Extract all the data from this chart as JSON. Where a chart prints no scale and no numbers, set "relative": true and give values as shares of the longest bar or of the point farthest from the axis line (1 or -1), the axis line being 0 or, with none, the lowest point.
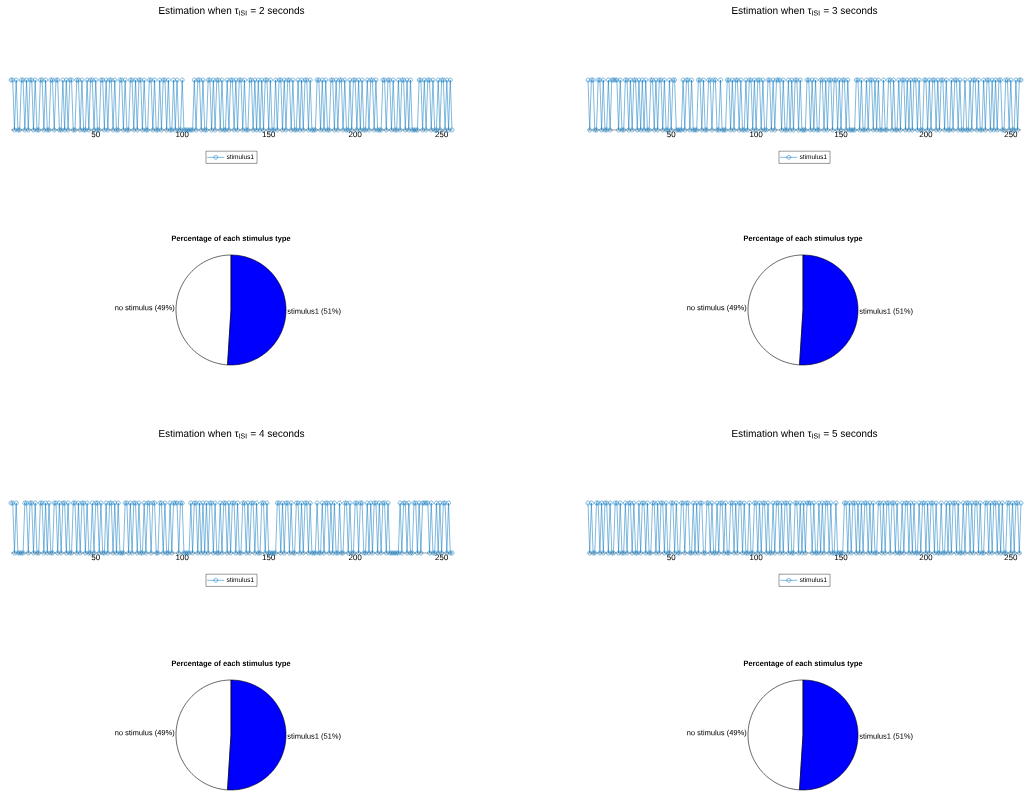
{
  "chart_data": [
    {
      "type": "line",
      "title": "Estimation when τ$_{ISI}$ = 2 seconds",
      "relative": true,
      "marker": "circle",
      "legend": "bottom",
      "xlim": [
        1,
        256
      ],
      "xticks": [
        50,
        100,
        150,
        200,
        250
      ],
      "x": [
        1,
        2,
        3,
        4,
        5,
        6,
        7,
        8,
        9,
        10,
        11,
        12,
        13,
        14,
        15,
        16,
        17,
        18,
        19,
        20,
        21,
        22,
        23,
        24,
        25,
        26,
        27,
        28,
        29,
        30,
        31,
        32,
        33,
        34,
        35,
        36,
        37,
        38,
        39,
        40,
        41,
        42,
        43,
        44,
        45,
        46,
        47,
        48,
        49,
        50,
        51,
        52,
        53,
        54,
        55,
        56,
        57,
        58,
        59,
        60,
        61,
        62,
        63,
        64,
        65,
        66,
        67,
        68,
        69,
        70,
        71,
        72,
        73,
        74,
        75,
        76,
        77,
        78,
        79,
        80,
        81,
        82,
        83,
        84,
        85,
        86,
        87,
        88,
        89,
        90,
        91,
        92,
        93,
        94,
        95,
        96,
        97,
        98,
        99,
        100,
        101,
        102,
        103,
        104,
        105,
        106,
        107,
        108,
        109,
        110,
        111,
        112,
        113,
        114,
        115,
        116,
        117,
        118,
        119,
        120,
        121,
        122,
        123,
        124,
        125,
        126,
        127,
        128,
        129,
        130,
        131,
        132,
        133,
        134,
        135,
        136,
        137,
        138,
        139,
        140,
        141,
        142,
        143,
        144,
        145,
        146,
        147,
        148,
        149,
        150,
        151,
        152,
        153,
        154,
        155,
        156,
        157,
        158,
        159,
        160,
        161,
        162,
        163,
        164,
        165,
        166,
        167,
        168,
        169,
        170,
        171,
        172,
        173,
        174,
        175,
        176,
        177,
        178,
        179,
        180,
        181,
        182,
        183,
        184,
        185,
        186,
        187,
        188,
        189,
        190,
        191,
        192,
        193,
        194,
        195,
        196,
        197,
        198,
        199,
        200,
        201,
        202,
        203,
        204,
        205,
        206,
        207,
        208,
        209,
        210,
        211,
        212,
        213,
        214,
        215,
        216,
        217,
        218,
        219,
        220,
        221,
        222,
        223,
        224,
        225,
        226,
        227,
        228,
        229,
        230,
        231,
        232,
        233,
        234,
        235,
        236,
        237,
        238,
        239,
        240,
        241,
        242,
        243,
        244,
        245,
        246,
        247,
        248,
        249,
        250,
        251,
        252,
        253,
        254,
        255,
        256
      ],
      "series": [
        {
          "name": "stimulus1",
          "color": "#0072bd",
          "values": [
            1,
            1,
            0,
            1,
            0,
            0,
            1,
            1,
            0,
            1,
            0,
            1,
            1,
            0,
            1,
            0,
            0,
            1,
            1,
            0,
            1,
            0,
            0,
            1,
            1,
            0,
            1,
            1,
            0,
            0,
            1,
            0,
            1,
            0,
            1,
            1,
            0,
            0,
            1,
            1,
            0,
            1,
            0,
            0,
            1,
            0,
            1,
            1,
            0,
            1,
            0,
            0,
            1,
            1,
            0,
            1,
            0,
            1,
            1,
            0,
            1,
            0,
            0,
            1,
            1,
            0,
            1,
            0,
            0,
            1,
            1,
            0,
            1,
            0,
            1,
            1,
            0,
            1,
            0,
            0,
            1,
            1,
            0,
            1,
            0,
            0,
            1,
            0,
            1,
            1,
            0,
            1,
            0,
            0,
            1,
            0,
            1,
            0,
            0,
            1,
            0,
            0,
            0,
            0,
            0,
            0,
            1,
            0,
            1,
            1,
            0,
            1,
            0,
            0,
            1,
            1,
            0,
            1,
            0,
            1,
            1,
            0,
            1,
            0,
            0,
            1,
            0,
            1,
            1,
            0,
            1,
            0,
            1,
            1,
            0,
            1,
            0,
            0,
            1,
            1,
            0,
            1,
            0,
            1,
            0,
            1,
            0,
            1,
            1,
            0,
            1,
            0,
            0,
            1,
            0,
            1,
            1,
            0,
            1,
            0,
            1,
            1,
            0,
            1,
            0,
            0,
            1,
            0,
            1,
            0,
            1,
            1,
            0,
            1,
            0,
            0,
            0,
            1,
            1,
            0,
            1,
            0,
            1,
            0,
            0,
            1,
            1,
            0,
            1,
            0,
            1,
            1,
            0,
            1,
            0,
            0,
            1,
            0,
            1,
            1,
            0,
            1,
            0,
            1,
            0,
            0,
            1,
            0,
            1,
            1,
            0,
            1,
            0,
            0,
            0,
            1,
            1,
            0,
            1,
            1,
            0,
            1,
            0,
            0,
            1,
            0,
            1,
            1,
            0,
            1,
            0,
            1,
            0,
            0,
            0,
            0,
            1,
            1,
            0,
            1,
            0,
            1,
            1,
            0,
            1,
            0,
            0,
            1,
            0,
            1,
            1,
            0,
            1,
            0,
            1,
            0
          ]
        }
      ]
    },
    {
      "type": "line",
      "title": "Estimation when τ$_{ISI}$ = 3 seconds",
      "relative": true,
      "marker": "circle",
      "legend": "bottom",
      "xlim": [
        1,
        256
      ],
      "xticks": [
        50,
        100,
        150,
        200,
        250
      ],
      "x": [
        1,
        2,
        3,
        4,
        5,
        6,
        7,
        8,
        9,
        10,
        11,
        12,
        13,
        14,
        15,
        16,
        17,
        18,
        19,
        20,
        21,
        22,
        23,
        24,
        25,
        26,
        27,
        28,
        29,
        30,
        31,
        32,
        33,
        34,
        35,
        36,
        37,
        38,
        39,
        40,
        41,
        42,
        43,
        44,
        45,
        46,
        47,
        48,
        49,
        50,
        51,
        52,
        53,
        54,
        55,
        56,
        57,
        58,
        59,
        60,
        61,
        62,
        63,
        64,
        65,
        66,
        67,
        68,
        69,
        70,
        71,
        72,
        73,
        74,
        75,
        76,
        77,
        78,
        79,
        80,
        81,
        82,
        83,
        84,
        85,
        86,
        87,
        88,
        89,
        90,
        91,
        92,
        93,
        94,
        95,
        96,
        97,
        98,
        99,
        100,
        101,
        102,
        103,
        104,
        105,
        106,
        107,
        108,
        109,
        110,
        111,
        112,
        113,
        114,
        115,
        116,
        117,
        118,
        119,
        120,
        121,
        122,
        123,
        124,
        125,
        126,
        127,
        128,
        129,
        130,
        131,
        132,
        133,
        134,
        135,
        136,
        137,
        138,
        139,
        140,
        141,
        142,
        143,
        144,
        145,
        146,
        147,
        148,
        149,
        150,
        151,
        152,
        153,
        154,
        155,
        156,
        157,
        158,
        159,
        160,
        161,
        162,
        163,
        164,
        165,
        166,
        167,
        168,
        169,
        170,
        171,
        172,
        173,
        174,
        175,
        176,
        177,
        178,
        179,
        180,
        181,
        182,
        183,
        184,
        185,
        186,
        187,
        188,
        189,
        190,
        191,
        192,
        193,
        194,
        195,
        196,
        197,
        198,
        199,
        200,
        201,
        202,
        203,
        204,
        205,
        206,
        207,
        208,
        209,
        210,
        211,
        212,
        213,
        214,
        215,
        216,
        217,
        218,
        219,
        220,
        221,
        222,
        223,
        224,
        225,
        226,
        227,
        228,
        229,
        230,
        231,
        232,
        233,
        234,
        235,
        236,
        237,
        238,
        239,
        240,
        241,
        242,
        243,
        244,
        245,
        246,
        247,
        248,
        249,
        250,
        251,
        252,
        253,
        254,
        255,
        256
      ],
      "series": [
        {
          "name": "stimulus1",
          "color": "#0072bd",
          "values": [
            1,
            0,
            1,
            1,
            0,
            0,
            1,
            1,
            0,
            1,
            0,
            0,
            1,
            0,
            1,
            1,
            1,
            1,
            0,
            1,
            0,
            0,
            1,
            1,
            0,
            1,
            0,
            1,
            1,
            0,
            1,
            0,
            1,
            0,
            1,
            0,
            0,
            1,
            1,
            0,
            1,
            0,
            1,
            1,
            0,
            1,
            0,
            0,
            1,
            0,
            1,
            1,
            0,
            0,
            0,
            0,
            1,
            0,
            1,
            1,
            0,
            1,
            0,
            0,
            0,
            1,
            1,
            0,
            1,
            0,
            0,
            1,
            1,
            0,
            1,
            1,
            0,
            0,
            1,
            0,
            0,
            0,
            1,
            1,
            0,
            1,
            0,
            1,
            1,
            0,
            1,
            0,
            0,
            1,
            0,
            1,
            1,
            0,
            1,
            0,
            1,
            1,
            0,
            1,
            0,
            0,
            1,
            1,
            0,
            1,
            0,
            1,
            1,
            1,
            0,
            1,
            0,
            0,
            1,
            0,
            1,
            0,
            1,
            1,
            0,
            1,
            0,
            0,
            0,
            1,
            1,
            0,
            1,
            0,
            1,
            0,
            0,
            1,
            1,
            0,
            1,
            0,
            1,
            1,
            0,
            1,
            1,
            0,
            1,
            0,
            1,
            1,
            0,
            1,
            0,
            0,
            0,
            0,
            1,
            1,
            0,
            1,
            0,
            0,
            1,
            0,
            1,
            1,
            0,
            1,
            0,
            1,
            0,
            0,
            1,
            0,
            0,
            1,
            1,
            0,
            1,
            0,
            0,
            1,
            0,
            1,
            1,
            0,
            1,
            0,
            1,
            0,
            1,
            1,
            0,
            1,
            0,
            0,
            1,
            1,
            0,
            1,
            0,
            1,
            1,
            0,
            1,
            0,
            1,
            1,
            0,
            1,
            0,
            0,
            1,
            0,
            1,
            1,
            0,
            1,
            0,
            0,
            1,
            0,
            0,
            1,
            0,
            1,
            1,
            0,
            1,
            0,
            0,
            1,
            0,
            1,
            1,
            0,
            1,
            0,
            1,
            0,
            1,
            1,
            0,
            0,
            1,
            1,
            0,
            1,
            0,
            0,
            1,
            0,
            1,
            1
          ]
        }
      ]
    },
    {
      "type": "pie",
      "title": "Percentage of each stimulus type",
      "values": [
        49,
        51
      ],
      "colors": [
        "#ffffff",
        "#0000ff"
      ],
      "value_labels": [
        "no stimulus (49%)",
        "stimulus1 (51%)"
      ]
    },
    {
      "type": "pie",
      "title": "Percentage of each stimulus type",
      "values": [
        49,
        51
      ],
      "colors": [
        "#ffffff",
        "#0000ff"
      ],
      "value_labels": [
        "no stimulus (49%)",
        "stimulus1 (51%)"
      ]
    },
    {
      "type": "line",
      "title": "Estimation when τ$_{ISI}$ = 4 seconds",
      "relative": true,
      "marker": "circle",
      "legend": "bottom",
      "xlim": [
        1,
        256
      ],
      "xticks": [
        50,
        100,
        150,
        200,
        250
      ],
      "x": [
        1,
        2,
        3,
        4,
        5,
        6,
        7,
        8,
        9,
        10,
        11,
        12,
        13,
        14,
        15,
        16,
        17,
        18,
        19,
        20,
        21,
        22,
        23,
        24,
        25,
        26,
        27,
        28,
        29,
        30,
        31,
        32,
        33,
        34,
        35,
        36,
        37,
        38,
        39,
        40,
        41,
        42,
        43,
        44,
        45,
        46,
        47,
        48,
        49,
        50,
        51,
        52,
        53,
        54,
        55,
        56,
        57,
        58,
        59,
        60,
        61,
        62,
        63,
        64,
        65,
        66,
        67,
        68,
        69,
        70,
        71,
        72,
        73,
        74,
        75,
        76,
        77,
        78,
        79,
        80,
        81,
        82,
        83,
        84,
        85,
        86,
        87,
        88,
        89,
        90,
        91,
        92,
        93,
        94,
        95,
        96,
        97,
        98,
        99,
        100,
        101,
        102,
        103,
        104,
        105,
        106,
        107,
        108,
        109,
        110,
        111,
        112,
        113,
        114,
        115,
        116,
        117,
        118,
        119,
        120,
        121,
        122,
        123,
        124,
        125,
        126,
        127,
        128,
        129,
        130,
        131,
        132,
        133,
        134,
        135,
        136,
        137,
        138,
        139,
        140,
        141,
        142,
        143,
        144,
        145,
        146,
        147,
        148,
        149,
        150,
        151,
        152,
        153,
        154,
        155,
        156,
        157,
        158,
        159,
        160,
        161,
        162,
        163,
        164,
        165,
        166,
        167,
        168,
        169,
        170,
        171,
        172,
        173,
        174,
        175,
        176,
        177,
        178,
        179,
        180,
        181,
        182,
        183,
        184,
        185,
        186,
        187,
        188,
        189,
        190,
        191,
        192,
        193,
        194,
        195,
        196,
        197,
        198,
        199,
        200,
        201,
        202,
        203,
        204,
        205,
        206,
        207,
        208,
        209,
        210,
        211,
        212,
        213,
        214,
        215,
        216,
        217,
        218,
        219,
        220,
        221,
        222,
        223,
        224,
        225,
        226,
        227,
        228,
        229,
        230,
        231,
        232,
        233,
        234,
        235,
        236,
        237,
        238,
        239,
        240,
        241,
        242,
        243,
        244,
        245,
        246,
        247,
        248,
        249,
        250,
        251,
        252,
        253,
        254,
        255,
        256
      ],
      "series": [
        {
          "name": "stimulus1",
          "color": "#0072bd",
          "values": [
            1,
            1,
            0,
            1,
            0,
            0,
            0,
            0,
            1,
            1,
            0,
            1,
            1,
            0,
            1,
            0,
            0,
            1,
            1,
            0,
            1,
            0,
            1,
            0,
            0,
            1,
            1,
            0,
            1,
            0,
            1,
            1,
            0,
            1,
            0,
            0,
            1,
            1,
            0,
            1,
            0,
            1,
            1,
            0,
            1,
            0,
            0,
            1,
            0,
            1,
            1,
            0,
            1,
            0,
            0,
            1,
            0,
            1,
            1,
            0,
            1,
            0,
            1,
            0,
            0,
            0,
            1,
            1,
            0,
            1,
            0,
            1,
            1,
            0,
            1,
            0,
            0,
            1,
            0,
            1,
            1,
            0,
            1,
            1,
            0,
            0,
            1,
            1,
            0,
            1,
            0,
            0,
            1,
            0,
            1,
            1,
            1,
            0,
            1,
            1,
            0,
            0,
            0,
            0,
            1,
            0,
            1,
            1,
            0,
            1,
            0,
            1,
            0,
            1,
            0,
            1,
            1,
            0,
            1,
            0,
            0,
            1,
            0,
            1,
            1,
            0,
            1,
            0,
            1,
            1,
            0,
            1,
            0,
            0,
            1,
            1,
            0,
            1,
            0,
            1,
            1,
            0,
            1,
            0,
            0,
            1,
            1,
            0,
            1,
            0,
            0,
            0,
            0,
            0,
            1,
            1,
            0,
            1,
            0,
            1,
            1,
            0,
            1,
            0,
            0,
            1,
            1,
            0,
            1,
            0,
            1,
            1,
            0,
            1,
            0,
            0,
            0,
            1,
            0,
            0,
            1,
            0,
            1,
            1,
            0,
            1,
            0,
            1,
            0,
            0,
            1,
            0,
            0,
            1,
            1,
            0,
            1,
            0,
            0,
            1,
            1,
            0,
            1,
            1,
            0,
            0,
            1,
            0,
            1,
            0,
            1,
            1,
            0,
            1,
            0,
            1,
            1,
            0,
            1,
            0,
            0,
            0,
            0,
            0,
            0,
            1,
            0,
            1,
            1,
            0,
            1,
            0,
            0,
            1,
            1,
            0,
            1,
            0,
            1,
            1,
            1,
            1,
            0,
            1,
            0,
            0,
            1,
            0,
            1,
            0,
            1,
            1,
            0,
            1,
            0,
            0
          ]
        }
      ]
    },
    {
      "type": "line",
      "title": "Estimation when τ$_{ISI}$ = 5 seconds",
      "relative": true,
      "marker": "circle",
      "legend": "bottom",
      "xlim": [
        1,
        256
      ],
      "xticks": [
        50,
        100,
        150,
        200,
        250
      ],
      "x": [
        1,
        2,
        3,
        4,
        5,
        6,
        7,
        8,
        9,
        10,
        11,
        12,
        13,
        14,
        15,
        16,
        17,
        18,
        19,
        20,
        21,
        22,
        23,
        24,
        25,
        26,
        27,
        28,
        29,
        30,
        31,
        32,
        33,
        34,
        35,
        36,
        37,
        38,
        39,
        40,
        41,
        42,
        43,
        44,
        45,
        46,
        47,
        48,
        49,
        50,
        51,
        52,
        53,
        54,
        55,
        56,
        57,
        58,
        59,
        60,
        61,
        62,
        63,
        64,
        65,
        66,
        67,
        68,
        69,
        70,
        71,
        72,
        73,
        74,
        75,
        76,
        77,
        78,
        79,
        80,
        81,
        82,
        83,
        84,
        85,
        86,
        87,
        88,
        89,
        90,
        91,
        92,
        93,
        94,
        95,
        96,
        97,
        98,
        99,
        100,
        101,
        102,
        103,
        104,
        105,
        106,
        107,
        108,
        109,
        110,
        111,
        112,
        113,
        114,
        115,
        116,
        117,
        118,
        119,
        120,
        121,
        122,
        123,
        124,
        125,
        126,
        127,
        128,
        129,
        130,
        131,
        132,
        133,
        134,
        135,
        136,
        137,
        138,
        139,
        140,
        141,
        142,
        143,
        144,
        145,
        146,
        147,
        148,
        149,
        150,
        151,
        152,
        153,
        154,
        155,
        156,
        157,
        158,
        159,
        160,
        161,
        162,
        163,
        164,
        165,
        166,
        167,
        168,
        169,
        170,
        171,
        172,
        173,
        174,
        175,
        176,
        177,
        178,
        179,
        180,
        181,
        182,
        183,
        184,
        185,
        186,
        187,
        188,
        189,
        190,
        191,
        192,
        193,
        194,
        195,
        196,
        197,
        198,
        199,
        200,
        201,
        202,
        203,
        204,
        205,
        206,
        207,
        208,
        209,
        210,
        211,
        212,
        213,
        214,
        215,
        216,
        217,
        218,
        219,
        220,
        221,
        222,
        223,
        224,
        225,
        226,
        227,
        228,
        229,
        230,
        231,
        232,
        233,
        234,
        235,
        236,
        237,
        238,
        239,
        240,
        241,
        242,
        243,
        244,
        245,
        246,
        247,
        248,
        249,
        250,
        251,
        252,
        253,
        254,
        255,
        256
      ],
      "series": [
        {
          "name": "stimulus1",
          "color": "#0072bd",
          "values": [
            1,
            0,
            1,
            0,
            0,
            1,
            1,
            0,
            1,
            0,
            1,
            1,
            0,
            1,
            0,
            0,
            1,
            1,
            0,
            1,
            0,
            0,
            1,
            0,
            1,
            1,
            0,
            1,
            0,
            0,
            1,
            0,
            1,
            1,
            0,
            1,
            0,
            0,
            1,
            1,
            0,
            1,
            0,
            1,
            1,
            0,
            1,
            0,
            0,
            1,
            1,
            0,
            1,
            0,
            0,
            1,
            1,
            0,
            1,
            1,
            0,
            0,
            1,
            0,
            1,
            0,
            1,
            1,
            0,
            0,
            1,
            1,
            0,
            1,
            0,
            0,
            1,
            0,
            1,
            1,
            0,
            1,
            0,
            0,
            1,
            1,
            0,
            1,
            0,
            1,
            1,
            0,
            1,
            0,
            0,
            1,
            0,
            0,
            1,
            1,
            0,
            1,
            0,
            1,
            1,
            0,
            1,
            0,
            0,
            1,
            0,
            1,
            1,
            0,
            1,
            0,
            1,
            1,
            0,
            1,
            0,
            0,
            1,
            1,
            0,
            1,
            0,
            1,
            0,
            1,
            1,
            1,
            0,
            1,
            0,
            0,
            1,
            0,
            1,
            0,
            1,
            1,
            0,
            1,
            0,
            0,
            1,
            0,
            0,
            0,
            0,
            1,
            1,
            0,
            1,
            0,
            1,
            1,
            0,
            1,
            0,
            1,
            0,
            1,
            1,
            0,
            1,
            0,
            1,
            0,
            0,
            1,
            1,
            0,
            1,
            0,
            1,
            1,
            0,
            1,
            1,
            0,
            1,
            0,
            0,
            1,
            0,
            1,
            1,
            0,
            1,
            0,
            1,
            0,
            0,
            1,
            0,
            1,
            1,
            0,
            1,
            0,
            1,
            1,
            0,
            1,
            0,
            0,
            1,
            0,
            0,
            1,
            0,
            1,
            0,
            1,
            1,
            0,
            1,
            0,
            0,
            1,
            0,
            1,
            1,
            0,
            1,
            0,
            1,
            1,
            0,
            1,
            0,
            0,
            1,
            1,
            0,
            1,
            0,
            1,
            1,
            0,
            1,
            0,
            1,
            0,
            0,
            1,
            1,
            0,
            1,
            0,
            1,
            1,
            0,
            1
          ]
        }
      ]
    },
    {
      "type": "pie",
      "title": "Percentage of each stimulus type",
      "values": [
        49,
        51
      ],
      "colors": [
        "#ffffff",
        "#0000ff"
      ],
      "value_labels": [
        "no stimulus (49%)",
        "stimulus1 (51%)"
      ]
    },
    {
      "type": "pie",
      "title": "Percentage of each stimulus type",
      "values": [
        49,
        51
      ],
      "colors": [
        "#ffffff",
        "#0000ff"
      ],
      "value_labels": [
        "no stimulus (49%)",
        "stimulus1 (51%)"
      ]
    }
  ]
}
